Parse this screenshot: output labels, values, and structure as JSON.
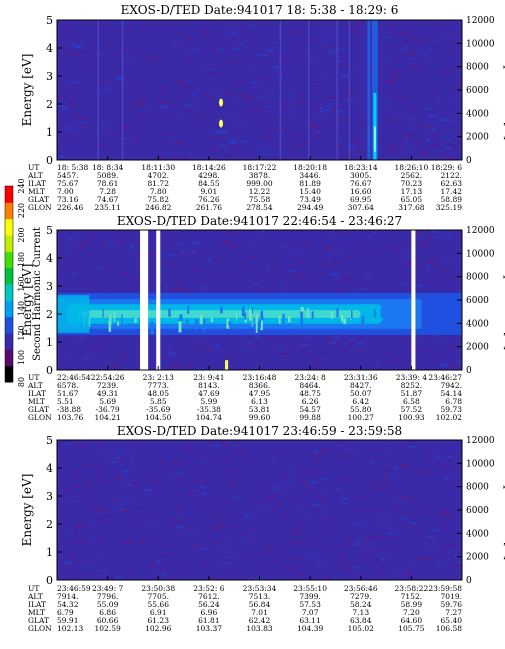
{
  "chart_data": [
    {
      "type": "heatmap",
      "title": "EXOS-D/TED   Date:941017  18: 5:38 - 18:29: 6",
      "ylabel": "Energy [eV]",
      "y2label": "Temperature [K]",
      "ylim": [
        0,
        5
      ],
      "y2lim": [
        0,
        12000
      ],
      "yticks": [
        "0",
        "1",
        "2",
        "3",
        "4",
        "5"
      ],
      "y2ticks": [
        "0",
        "2000",
        "4000",
        "6000",
        "8000",
        "10000",
        "12000"
      ],
      "background_color": "#3a2aa8",
      "features": [
        {
          "kind": "vertical_streak",
          "x_frac": 0.785,
          "intensity": "high"
        },
        {
          "kind": "vertical_streak",
          "x_frac": 0.77,
          "intensity": "medium"
        },
        {
          "kind": "spot",
          "x_frac": 0.405,
          "y": 1.3,
          "color": "#ffff60"
        },
        {
          "kind": "spot",
          "x_frac": 0.405,
          "y": 2.05,
          "color": "#ffff60"
        }
      ],
      "table": {
        "row_labels": [
          "UT",
          "ALT",
          "ILAT",
          "MLT",
          "GLAT",
          "GLON"
        ],
        "columns": [
          [
            "18: 5:38",
            "5457.",
            "75.67",
            "7.00",
            "73.16",
            "226.46"
          ],
          [
            "18: 8:34",
            "5089.",
            "78.61",
            "7.28",
            "74.67",
            "235.11"
          ],
          [
            "18:11:30",
            "4702.",
            "81.72",
            "7.80",
            "75.82",
            "246.82"
          ],
          [
            "18:14:26",
            "4298.",
            "84.55",
            "9.01",
            "76.26",
            "261.76"
          ],
          [
            "18:17:22",
            "3878.",
            "999.00",
            "12.22",
            "75.58",
            "278.54"
          ],
          [
            "18:20:18",
            "3446.",
            "81.89",
            "15.40",
            "73.49",
            "294.49"
          ],
          [
            "18:23:14",
            "3005.",
            "76.67",
            "16.60",
            "69.95",
            "307.64"
          ],
          [
            "18:26:10",
            "2562.",
            "70.23",
            "17.13",
            "65.05",
            "317.68"
          ],
          [
            "18:29: 6",
            "2122.",
            "62.63",
            "17.42",
            "58.89",
            "325.19"
          ]
        ]
      }
    },
    {
      "type": "heatmap",
      "title": "EXOS-D/TED   Date:941017  22:46:54 - 23:46:27",
      "ylabel": "Energy [eV]",
      "y2label": "Temperature [K]",
      "ylim": [
        0,
        5
      ],
      "y2lim": [
        0,
        12000
      ],
      "yticks": [
        "0",
        "1",
        "2",
        "3",
        "4",
        "5"
      ],
      "y2ticks": [
        "0",
        "2000",
        "4000",
        "6000",
        "8000",
        "10000",
        "12000"
      ],
      "background_color": "#3a2aa8",
      "band": {
        "center": 2.0,
        "core_halfwidth": 0.35,
        "outer_halfwidth": 0.75
      },
      "gaps_x_frac": [
        [
          0.205,
          0.225
        ],
        [
          0.245,
          0.255
        ],
        [
          0.875,
          0.885
        ]
      ],
      "table": {
        "row_labels": [
          "UT",
          "ALT",
          "ILAT",
          "MLT",
          "GLAT",
          "GLON"
        ],
        "columns": [
          [
            "22:46:54",
            "6578.",
            "51.67",
            "5.51",
            "-38.88",
            "103.76"
          ],
          [
            "22:54:26",
            "7239.",
            "49.31",
            "5.69",
            "-36.79",
            "104.21"
          ],
          [
            "23: 2:13",
            "7773.",
            "48.05",
            "5.85",
            "-35.69",
            "104.50"
          ],
          [
            "23: 9:41",
            "8143.",
            "47.69",
            "5.99",
            "-35.38",
            "104.74"
          ],
          [
            "23:16:48",
            "8366.",
            "47.95",
            "6.13",
            "53.81",
            "99.60"
          ],
          [
            "23:24: 8",
            "8464.",
            "48.75",
            "6.26",
            "54.57",
            "99.88"
          ],
          [
            "23:31:36",
            "8427.",
            "50.07",
            "6.42",
            "55.80",
            "100.27"
          ],
          [
            "23:39: 4",
            "8252.",
            "51.87",
            "6.58",
            "57.52",
            "100.93"
          ],
          [
            "23:46:27",
            "7942.",
            "54.14",
            "6.78",
            "59.73",
            "102.02"
          ]
        ]
      }
    },
    {
      "type": "heatmap",
      "title": "EXOS-D/TED   Date:941017  23:46:59 - 23:59:58",
      "ylabel": "Energy [eV]",
      "y2label": "Temperature [K]",
      "ylim": [
        0,
        5
      ],
      "y2lim": [
        0,
        12000
      ],
      "yticks": [
        "0",
        "1",
        "2",
        "3",
        "4",
        "5"
      ],
      "y2ticks": [
        "0",
        "2000",
        "4000",
        "6000",
        "8000",
        "10000",
        "12000"
      ],
      "background_color": "#3a2aa8",
      "table": {
        "row_labels": [
          "UT",
          "ALT",
          "ILAT",
          "MLT",
          "GLAT",
          "GLON"
        ],
        "columns": [
          [
            "23:46:59",
            "7914.",
            "54.32",
            "6.79",
            "59.91",
            "102.13"
          ],
          [
            "23:49: 7",
            "7796.",
            "55.09",
            "6.86",
            "60.66",
            "102.59"
          ],
          [
            "23:50:38",
            "7705.",
            "55.66",
            "6.91",
            "61.23",
            "102.96"
          ],
          [
            "23:52: 6",
            "7612.",
            "56.24",
            "6.96",
            "61.81",
            "103.37"
          ],
          [
            "23:53:34",
            "7513.",
            "56.84",
            "7.01",
            "62.42",
            "103.83"
          ],
          [
            "23:55:10",
            "7399.",
            "57.53",
            "7.07",
            "63.11",
            "104.39"
          ],
          [
            "23:56:46",
            "7279.",
            "58.24",
            "7.13",
            "63.84",
            "105.02"
          ],
          [
            "23:58:22",
            "7152.",
            "58.99",
            "7.20",
            "64.60",
            "105.75"
          ],
          [
            "23:59:58",
            "7019.",
            "59.76",
            "7.27",
            "65.40",
            "106.58"
          ]
        ]
      }
    }
  ],
  "colorbar": {
    "label": "Second Harmonic Current",
    "ticks": [
      "80",
      "100",
      "120",
      "140",
      "160",
      "180",
      "200",
      "220",
      "240"
    ],
    "colors": [
      "#000000",
      "#5a0a6a",
      "#3a2aa8",
      "#2050e0",
      "#00a0f0",
      "#00c8c0",
      "#00c040",
      "#40e000",
      "#c0f000",
      "#ffff00",
      "#ff8000",
      "#ff0000"
    ]
  }
}
